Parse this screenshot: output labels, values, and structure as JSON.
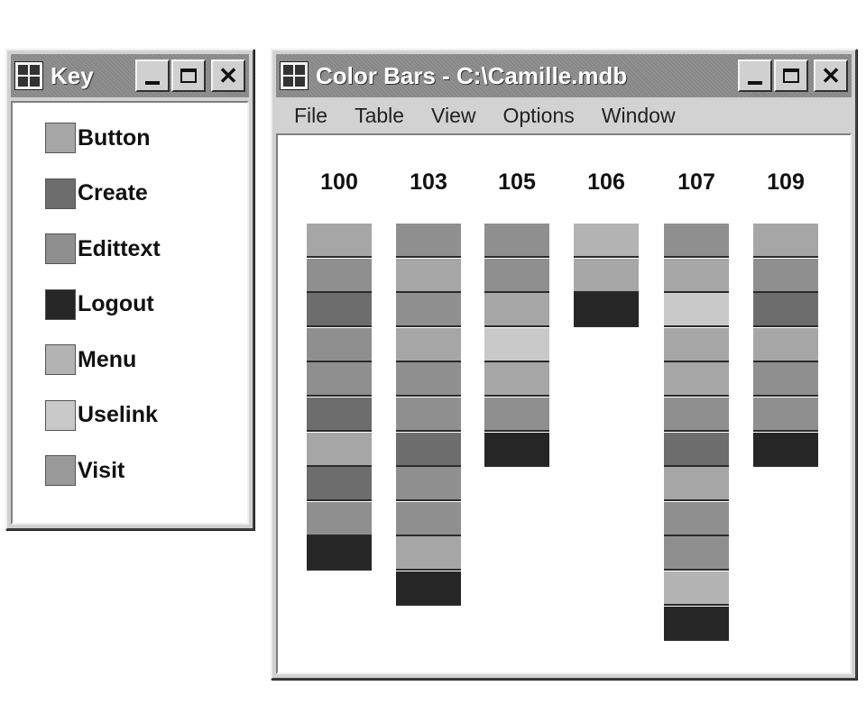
{
  "colors": {
    "Button": "#a6a6a6",
    "Create": "#6d6d6d",
    "Edittext": "#8f8f8f",
    "Logout": "#262626",
    "Menu": "#b3b3b3",
    "Uselink": "#c9c9c9",
    "Visit": "#9a9a9a"
  },
  "key_window": {
    "title": "Key",
    "items": [
      {
        "label": "Button",
        "color": "#a6a6a6"
      },
      {
        "label": "Create",
        "color": "#6d6d6d"
      },
      {
        "label": "Edittext",
        "color": "#8f8f8f"
      },
      {
        "label": "Logout",
        "color": "#262626"
      },
      {
        "label": "Menu",
        "color": "#b3b3b3"
      },
      {
        "label": "Uselink",
        "color": "#c9c9c9"
      },
      {
        "label": "Visit",
        "color": "#9a9a9a"
      }
    ]
  },
  "bars_window": {
    "title": "Color Bars - C:\\Camille.mdb",
    "menu": [
      "File",
      "Table",
      "View",
      "Options",
      "Window"
    ],
    "columns": [
      {
        "label": "100",
        "segments": [
          "Button",
          "Edittext",
          "Create",
          "Edittext",
          "Edittext",
          "Create",
          "Button",
          "Create",
          "Edittext",
          "Logout"
        ]
      },
      {
        "label": "103",
        "segments": [
          "Edittext",
          "Button",
          "Edittext",
          "Button",
          "Edittext",
          "Edittext",
          "Create",
          "Edittext",
          "Edittext",
          "Button",
          "Logout"
        ]
      },
      {
        "label": "105",
        "segments": [
          "Edittext",
          "Edittext",
          "Button",
          "Uselink",
          "Button",
          "Edittext",
          "Logout"
        ]
      },
      {
        "label": "106",
        "segments": [
          "Menu",
          "Button",
          "Logout"
        ]
      },
      {
        "label": "107",
        "segments": [
          "Edittext",
          "Button",
          "Uselink",
          "Button",
          "Button",
          "Edittext",
          "Create",
          "Button",
          "Edittext",
          "Edittext",
          "Menu",
          "Logout"
        ]
      },
      {
        "label": "109",
        "segments": [
          "Button",
          "Edittext",
          "Create",
          "Button",
          "Edittext",
          "Edittext",
          "Logout"
        ]
      }
    ]
  }
}
